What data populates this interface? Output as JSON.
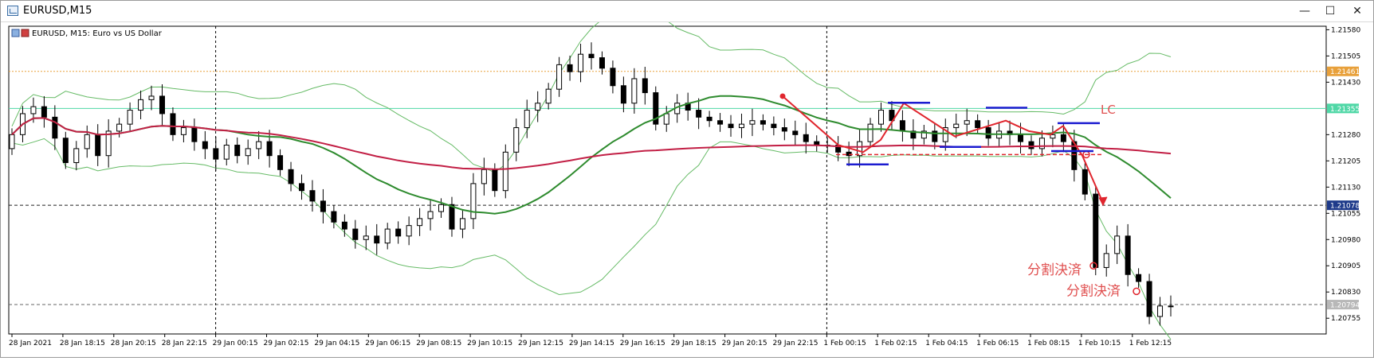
{
  "window": {
    "title": "EURUSD,M15",
    "minimize_glyph": "—",
    "maximize_glyph": "☐",
    "close_glyph": "✕"
  },
  "chart_data": {
    "type": "candlestick",
    "title": "EURUSD, M15:  Euro vs US Dollar",
    "ylim": [
      1.2071,
      1.2159
    ],
    "y_ticks": [
      "1.21580",
      "1.21505",
      "1.21430",
      "1.21280",
      "1.21205",
      "1.21130",
      "1.21055",
      "1.20980",
      "1.20905",
      "1.20830",
      "1.20755"
    ],
    "x_ticks": [
      "28 Jan 2021",
      "28 Jan 18:15",
      "28 Jan 20:15",
      "28 Jan 22:15",
      "29 Jan 00:15",
      "29 Jan 02:15",
      "29 Jan 04:15",
      "29 Jan 06:15",
      "29 Jan 08:15",
      "29 Jan 10:15",
      "29 Jan 12:15",
      "29 Jan 14:15",
      "29 Jan 16:15",
      "29 Jan 18:15",
      "29 Jan 20:15",
      "29 Jan 22:15",
      "1 Feb 00:15",
      "1 Feb 02:15",
      "1 Feb 04:15",
      "1 Feb 06:15",
      "1 Feb 08:15",
      "1 Feb 10:15",
      "1 Feb 12:15"
    ],
    "price_labels": [
      {
        "value": 1.21461,
        "text": "1.21461",
        "color": "#e8a03a"
      },
      {
        "value": 1.21355,
        "text": "1.21355",
        "color": "#4fd7a6"
      },
      {
        "value": 1.21078,
        "text": "1.21078",
        "color": "#1e3a8a"
      },
      {
        "value": 1.20794,
        "text": "1.20794",
        "color": "#b8b8b8"
      }
    ],
    "h_lines": [
      {
        "value": 1.21461,
        "style": "dotted",
        "color": "#e8a03a"
      },
      {
        "value": 1.21355,
        "style": "solid",
        "color": "#4fd7a6"
      },
      {
        "value": 1.21078,
        "style": "dashed",
        "color": "#222222"
      },
      {
        "value": 1.20794,
        "style": "dashed",
        "color": "#666666"
      }
    ],
    "v_lines": [
      4,
      16
    ],
    "annotations": [
      {
        "text": "LC",
        "color": "#e05050"
      },
      {
        "text": "分割決済",
        "color": "#e05050"
      },
      {
        "text": "分割決済",
        "color": "#e05050"
      }
    ],
    "ma_fast_color": "#2e8b2e",
    "ma_slow_color": "#c21f45",
    "bb_color": "#66bb66",
    "close": [
      1.2128,
      1.2134,
      1.2136,
      1.2133,
      1.2127,
      1.212,
      1.2124,
      1.2128,
      1.2122,
      1.2129,
      1.2131,
      1.2135,
      1.2138,
      1.2139,
      1.2134,
      1.2128,
      1.213,
      1.2126,
      1.2124,
      1.2121,
      1.2125,
      1.2122,
      1.2124,
      1.2126,
      1.2122,
      1.2118,
      1.2114,
      1.2112,
      1.2109,
      1.2106,
      1.2103,
      1.2101,
      1.2098,
      1.2099,
      1.2097,
      1.2101,
      1.2099,
      1.2102,
      1.2104,
      1.2106,
      1.2108,
      1.2101,
      1.2104,
      1.2114,
      1.2118,
      1.2112,
      1.2123,
      1.213,
      1.2135,
      1.2137,
      1.2141,
      1.2148,
      1.2146,
      1.2151,
      1.215,
      1.2147,
      1.2142,
      1.2137,
      1.2144,
      1.214,
      1.2131,
      1.2134,
      1.2137,
      1.2135,
      1.2133,
      1.2132,
      1.2131,
      1.213,
      1.2131,
      1.2132,
      1.2131,
      1.213,
      1.2129,
      1.2128,
      1.2126,
      1.2125,
      1.2125,
      1.2123,
      1.2122,
      1.2126,
      1.2131,
      1.2135,
      1.2132,
      1.2129,
      1.2127,
      1.2129,
      1.2126,
      1.213,
      1.2131,
      1.2132,
      1.213,
      1.2127,
      1.2129,
      1.2128,
      1.2126,
      1.2124,
      1.2127,
      1.2128,
      1.2126,
      1.2118,
      1.2111,
      1.209,
      1.2094,
      1.2099,
      1.2088,
      1.2086,
      1.2076,
      1.2079,
      1.2079
    ]
  }
}
